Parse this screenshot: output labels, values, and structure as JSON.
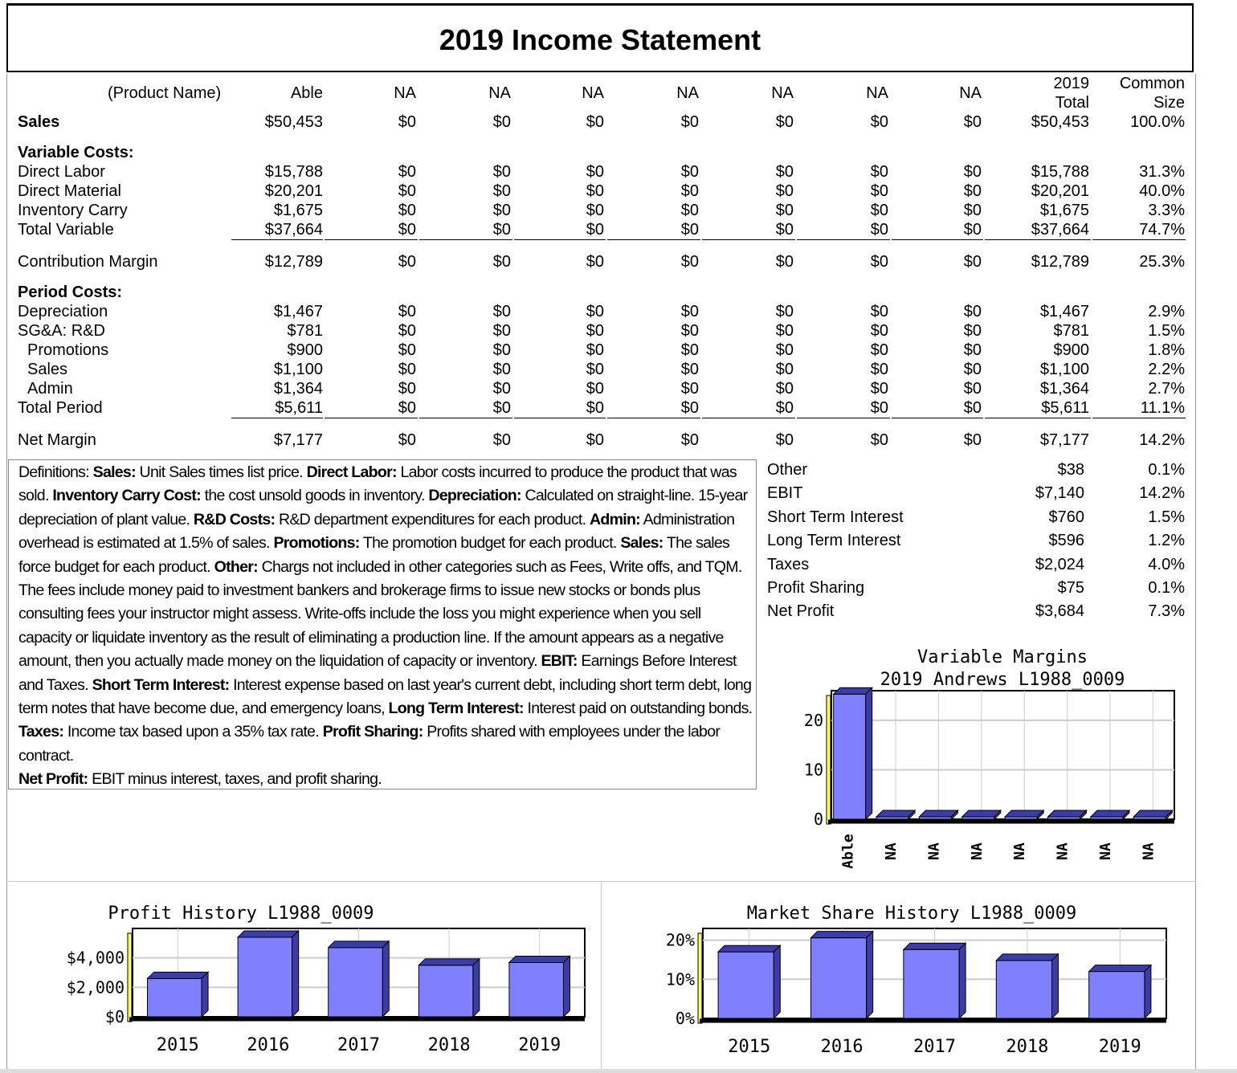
{
  "title": "2019 Income Statement",
  "header": {
    "product_name_label": "(Product Name)",
    "products": [
      "Able",
      "NA",
      "NA",
      "NA",
      "NA",
      "NA",
      "NA",
      "NA"
    ],
    "total_label": [
      "2019",
      "Total"
    ],
    "common_label": [
      "Common",
      "Size"
    ]
  },
  "rows": [
    {
      "label": "Sales",
      "bold": true,
      "values": [
        "$50,453",
        "$0",
        "$0",
        "$0",
        "$0",
        "$0",
        "$0",
        "$0"
      ],
      "total": "$50,453",
      "common": "100.0%"
    },
    {
      "label": "Variable Costs:",
      "bold": true,
      "section": true
    },
    {
      "label": "Direct Labor",
      "values": [
        "$15,788",
        "$0",
        "$0",
        "$0",
        "$0",
        "$0",
        "$0",
        "$0"
      ],
      "total": "$15,788",
      "common": "31.3%"
    },
    {
      "label": "Direct Material",
      "values": [
        "$20,201",
        "$0",
        "$0",
        "$0",
        "$0",
        "$0",
        "$0",
        "$0"
      ],
      "total": "$20,201",
      "common": "40.0%"
    },
    {
      "label": "Inventory Carry",
      "values": [
        "$1,675",
        "$0",
        "$0",
        "$0",
        "$0",
        "$0",
        "$0",
        "$0"
      ],
      "total": "$1,675",
      "common": "3.3%"
    },
    {
      "label": "Total Variable",
      "underline": true,
      "values": [
        "$37,664",
        "$0",
        "$0",
        "$0",
        "$0",
        "$0",
        "$0",
        "$0"
      ],
      "total": "$37,664",
      "common": "74.7%"
    },
    {
      "label": "Contribution Margin",
      "values": [
        "$12,789",
        "$0",
        "$0",
        "$0",
        "$0",
        "$0",
        "$0",
        "$0"
      ],
      "total": "$12,789",
      "common": "25.3%"
    },
    {
      "label": "Period Costs:",
      "bold": true,
      "section": true
    },
    {
      "label": "Depreciation",
      "values": [
        "$1,467",
        "$0",
        "$0",
        "$0",
        "$0",
        "$0",
        "$0",
        "$0"
      ],
      "total": "$1,467",
      "common": "2.9%"
    },
    {
      "label": "SG&A: R&D",
      "values": [
        "$781",
        "$0",
        "$0",
        "$0",
        "$0",
        "$0",
        "$0",
        "$0"
      ],
      "total": "$781",
      "common": "1.5%"
    },
    {
      "label": "Promotions",
      "indent": true,
      "values": [
        "$900",
        "$0",
        "$0",
        "$0",
        "$0",
        "$0",
        "$0",
        "$0"
      ],
      "total": "$900",
      "common": "1.8%"
    },
    {
      "label": "Sales",
      "indent": true,
      "values": [
        "$1,100",
        "$0",
        "$0",
        "$0",
        "$0",
        "$0",
        "$0",
        "$0"
      ],
      "total": "$1,100",
      "common": "2.2%"
    },
    {
      "label": "Admin",
      "indent": true,
      "values": [
        "$1,364",
        "$0",
        "$0",
        "$0",
        "$0",
        "$0",
        "$0",
        "$0"
      ],
      "total": "$1,364",
      "common": "2.7%"
    },
    {
      "label": "Total Period",
      "underline": true,
      "values": [
        "$5,611",
        "$0",
        "$0",
        "$0",
        "$0",
        "$0",
        "$0",
        "$0"
      ],
      "total": "$5,611",
      "common": "11.1%"
    },
    {
      "label": "Net Margin",
      "values": [
        "$7,177",
        "$0",
        "$0",
        "$0",
        "$0",
        "$0",
        "$0",
        "$0"
      ],
      "total": "$7,177",
      "common": "14.2%"
    }
  ],
  "definitions": [
    {
      "t": "Definitions: "
    },
    {
      "b": 1,
      "t": "Sales:"
    },
    {
      "t": " Unit Sales times list price. "
    },
    {
      "b": 1,
      "t": "Direct Labor:"
    },
    {
      "t": " Labor costs incurred to produce the product that was sold. "
    },
    {
      "b": 1,
      "t": "Inventory Carry Cost:"
    },
    {
      "t": " the cost unsold goods in inventory. "
    },
    {
      "b": 1,
      "t": "Depreciation:"
    },
    {
      "t": " Calculated on straight-line. 15-year depreciation of plant value. "
    },
    {
      "b": 1,
      "t": "R&D Costs:"
    },
    {
      "t": " R&D department expenditures for each product. "
    },
    {
      "b": 1,
      "t": "Admin:"
    },
    {
      "t": " Administration overhead is estimated at 1.5% of sales. "
    },
    {
      "b": 1,
      "t": "Promotions:"
    },
    {
      "t": " The promotion budget for each product. "
    },
    {
      "b": 1,
      "t": "Sales:"
    },
    {
      "t": " The sales force budget for each product. "
    },
    {
      "b": 1,
      "t": "Other:"
    },
    {
      "t": " Chargs not included in other categories such as Fees, Write offs, and TQM. The fees include money paid to investment bankers and brokerage firms to issue new stocks or bonds plus consulting fees your instructor might assess. Write-offs include the loss you might experience when you sell capacity or liquidate inventory as the result of eliminating a production line. If the amount appears as a negative amount, then you actually made money on the liquidation of capacity or inventory. "
    },
    {
      "b": 1,
      "t": "EBIT:"
    },
    {
      "t": " Earnings Before Interest and Taxes. "
    },
    {
      "b": 1,
      "t": "Short Term Interest:"
    },
    {
      "t": " Interest expense based on last year's current debt, including short term debt, long term notes that have become due, and emergency loans, "
    },
    {
      "b": 1,
      "t": "Long Term Interest:"
    },
    {
      "t": " Interest paid on outstanding bonds. "
    },
    {
      "b": 1,
      "t": "Taxes:"
    },
    {
      "t": " Income tax based upon a 35% tax rate. "
    },
    {
      "b": 1,
      "t": "Profit Sharing:"
    },
    {
      "t": " Profits shared with employees under the labor contract. "
    },
    {
      "br": 1,
      "b": 1,
      "t": "Net Profit:"
    },
    {
      "t": " EBIT minus interest, taxes, and profit sharing."
    }
  ],
  "summary": [
    {
      "label": "Other",
      "value": "$38",
      "common": "0.1%"
    },
    {
      "label": "EBIT",
      "value": "$7,140",
      "common": "14.2%"
    },
    {
      "label": "Short Term Interest",
      "value": "$760",
      "common": "1.5%"
    },
    {
      "label": "Long Term Interest",
      "value": "$596",
      "common": "1.2%"
    },
    {
      "label": "Taxes",
      "value": "$2,024",
      "common": "4.0%"
    },
    {
      "label": "Profit Sharing",
      "value": "$75",
      "common": "0.1%"
    },
    {
      "label": "Net Profit",
      "value": "$3,684",
      "common": "7.3%"
    }
  ],
  "colors": {
    "bar": "#8080ff",
    "bar_dark": "#3c3ca8",
    "axis_wall": "#ffff66"
  },
  "chart_data": [
    {
      "type": "bar",
      "title": [
        "Variable Margins",
        "2019 Andrews L1988_0009"
      ],
      "categories": [
        "Able",
        "NA",
        "NA",
        "NA",
        "NA",
        "NA",
        "NA",
        "NA"
      ],
      "values": [
        25.3,
        0,
        0,
        0,
        0,
        0,
        0,
        0
      ],
      "yticks": [
        "0",
        "10",
        "20"
      ],
      "ylim": [
        0,
        26
      ],
      "grid": true
    },
    {
      "type": "bar",
      "title": [
        "Profit History L1988_0009"
      ],
      "categories": [
        "2015",
        "2016",
        "2017",
        "2018",
        "2019"
      ],
      "values": [
        2600,
        5400,
        4700,
        3500,
        3684
      ],
      "yticks": [
        "$0",
        "$2,000",
        "$4,000"
      ],
      "ylim": [
        0,
        6000
      ],
      "grid": true
    },
    {
      "type": "bar",
      "title": [
        "Market Share History L1988_0009"
      ],
      "categories": [
        "2015",
        "2016",
        "2017",
        "2018",
        "2019"
      ],
      "values": [
        17,
        20.6,
        17.6,
        14.8,
        12
      ],
      "yticks": [
        "0%",
        "10%",
        "20%"
      ],
      "ylim": [
        0,
        23
      ],
      "grid": true
    }
  ]
}
